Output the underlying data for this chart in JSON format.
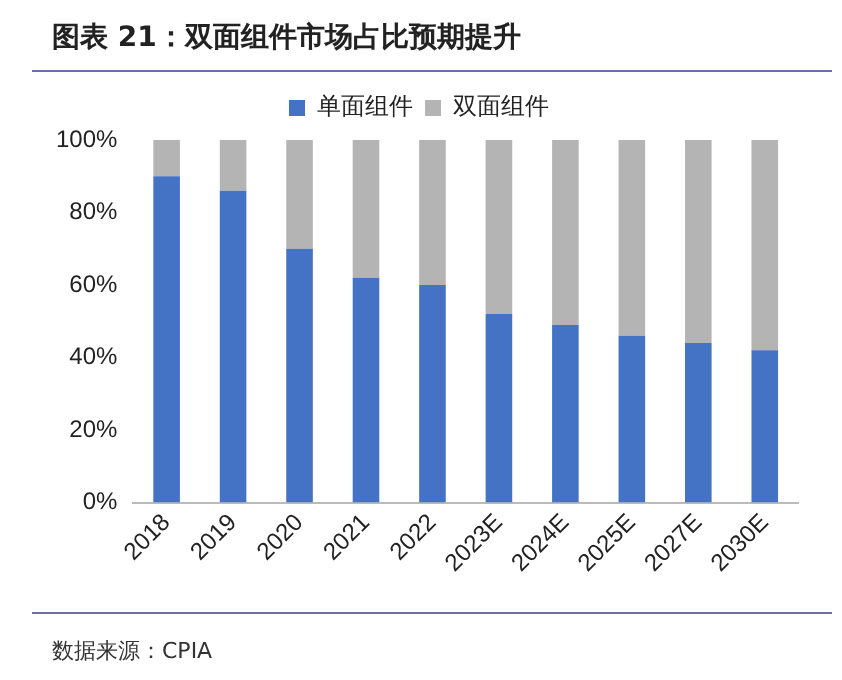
{
  "chart_data": {
    "type": "bar",
    "title": "图表 21：双面组件市场占比预期提升",
    "categories": [
      "2018",
      "2019",
      "2020",
      "2021",
      "2022",
      "2023E",
      "2024E",
      "2025E",
      "2027E",
      "2030E"
    ],
    "series": [
      {
        "name": "单面组件",
        "color": "#4472c4",
        "values": [
          90,
          86,
          70,
          62,
          60,
          52,
          49,
          46,
          44,
          42
        ]
      },
      {
        "name": "双面组件",
        "color": "#b4b4b4",
        "values": [
          10,
          14,
          30,
          38,
          40,
          48,
          51,
          54,
          56,
          58
        ]
      }
    ],
    "stacked": true,
    "ylim": [
      0,
      100
    ],
    "yticks": [
      {
        "value": 0,
        "label": "0%"
      },
      {
        "value": 20,
        "label": "20%"
      },
      {
        "value": 40,
        "label": "40%"
      },
      {
        "value": 60,
        "label": "60%"
      },
      {
        "value": 80,
        "label": "80%"
      },
      {
        "value": 100,
        "label": "100%"
      }
    ],
    "grid": false,
    "legend": "top",
    "annotations": [
      "数据来源：CPIA"
    ]
  }
}
